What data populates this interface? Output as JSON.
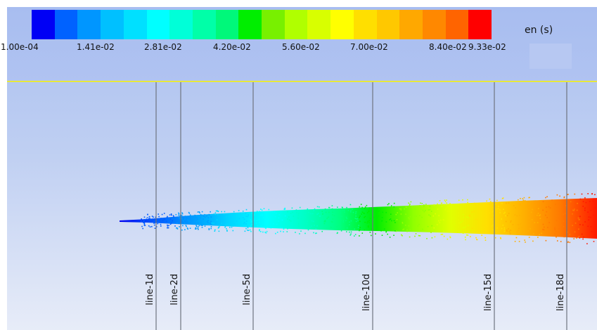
{
  "legend": {
    "title": "en (s)",
    "tick_labels": [
      "1.00e-04",
      "1.41e-02",
      "2.81e-02",
      "4.20e-02",
      "5.60e-02",
      "7.00e-02",
      "8.40e-02",
      "9.33e-02"
    ],
    "colors": [
      "#0000f5",
      "#0062ff",
      "#0096ff",
      "#00c0ff",
      "#00e0ff",
      "#00ffff",
      "#00ffd8",
      "#00ffa8",
      "#00f87a",
      "#00ee00",
      "#78f000",
      "#b0ff00",
      "#d8ff00",
      "#ffff00",
      "#ffdf00",
      "#ffc800",
      "#ffa800",
      "#ff8800",
      "#ff6400",
      "#ff0000"
    ]
  },
  "probe_lines": [
    {
      "label": "line-1d"
    },
    {
      "label": "line-2d"
    },
    {
      "label": "line-5d"
    },
    {
      "label": "line-10d"
    },
    {
      "label": "line-15d"
    },
    {
      "label": "line-18d"
    }
  ],
  "plume": {
    "stops": [
      "#0000ee",
      "#005cff",
      "#009cff",
      "#00d6ff",
      "#00ffff",
      "#00ffc8",
      "#00ff80",
      "#00ee00",
      "#90ff00",
      "#e0ff00",
      "#ffdf00",
      "#ffb000",
      "#ff7a00",
      "#ff1800"
    ]
  }
}
